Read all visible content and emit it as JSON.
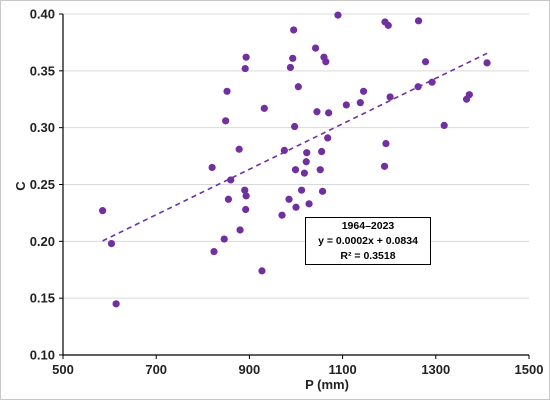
{
  "chart_data": {
    "type": "scatter",
    "title": "",
    "xlabel": "P (mm)",
    "ylabel": "C",
    "xlim": [
      500,
      1500
    ],
    "ylim": [
      0.1,
      0.4
    ],
    "x_ticks": [
      "500",
      "700",
      "900",
      "1100",
      "1300",
      "1500"
    ],
    "y_ticks": [
      "0.10",
      "0.15",
      "0.20",
      "0.25",
      "0.30",
      "0.35",
      "0.40"
    ],
    "grid": "horizontal",
    "marker_color": "#7030a0",
    "trendline": {
      "slope": 0.0002,
      "intercept": 0.0834,
      "x_range": [
        585,
        1410
      ],
      "style": "dashed",
      "color": "#7030a0"
    },
    "annotation": {
      "period": "1964–2023",
      "equation": "y = 0.0002x + 0.0834",
      "r2": "R² = 0.3518"
    },
    "points": [
      [
        585,
        0.227
      ],
      [
        604,
        0.198
      ],
      [
        614,
        0.145
      ],
      [
        820,
        0.265
      ],
      [
        824,
        0.191
      ],
      [
        846,
        0.202
      ],
      [
        849,
        0.306
      ],
      [
        852,
        0.332
      ],
      [
        855,
        0.237
      ],
      [
        860,
        0.254
      ],
      [
        878,
        0.281
      ],
      [
        880,
        0.21
      ],
      [
        890,
        0.245
      ],
      [
        891,
        0.352
      ],
      [
        892,
        0.228
      ],
      [
        893,
        0.362
      ],
      [
        893,
        0.24
      ],
      [
        927,
        0.174
      ],
      [
        932,
        0.317
      ],
      [
        970,
        0.223
      ],
      [
        975,
        0.28
      ],
      [
        985,
        0.237
      ],
      [
        988,
        0.353
      ],
      [
        993,
        0.361
      ],
      [
        995,
        0.386
      ],
      [
        997,
        0.301
      ],
      [
        999,
        0.263
      ],
      [
        1000,
        0.23
      ],
      [
        1005,
        0.336
      ],
      [
        1012,
        0.245
      ],
      [
        1018,
        0.26
      ],
      [
        1022,
        0.27
      ],
      [
        1023,
        0.278
      ],
      [
        1028,
        0.233
      ],
      [
        1042,
        0.37
      ],
      [
        1045,
        0.314
      ],
      [
        1052,
        0.263
      ],
      [
        1055,
        0.279
      ],
      [
        1057,
        0.244
      ],
      [
        1060,
        0.362
      ],
      [
        1064,
        0.358
      ],
      [
        1068,
        0.291
      ],
      [
        1070,
        0.313
      ],
      [
        1090,
        0.399
      ],
      [
        1108,
        0.32
      ],
      [
        1138,
        0.322
      ],
      [
        1145,
        0.332
      ],
      [
        1190,
        0.266
      ],
      [
        1191,
        0.393
      ],
      [
        1193,
        0.286
      ],
      [
        1198,
        0.39
      ],
      [
        1202,
        0.327
      ],
      [
        1262,
        0.336
      ],
      [
        1263,
        0.394
      ],
      [
        1278,
        0.358
      ],
      [
        1292,
        0.34
      ],
      [
        1318,
        0.302
      ],
      [
        1366,
        0.325
      ],
      [
        1372,
        0.329
      ],
      [
        1410,
        0.357
      ]
    ]
  }
}
